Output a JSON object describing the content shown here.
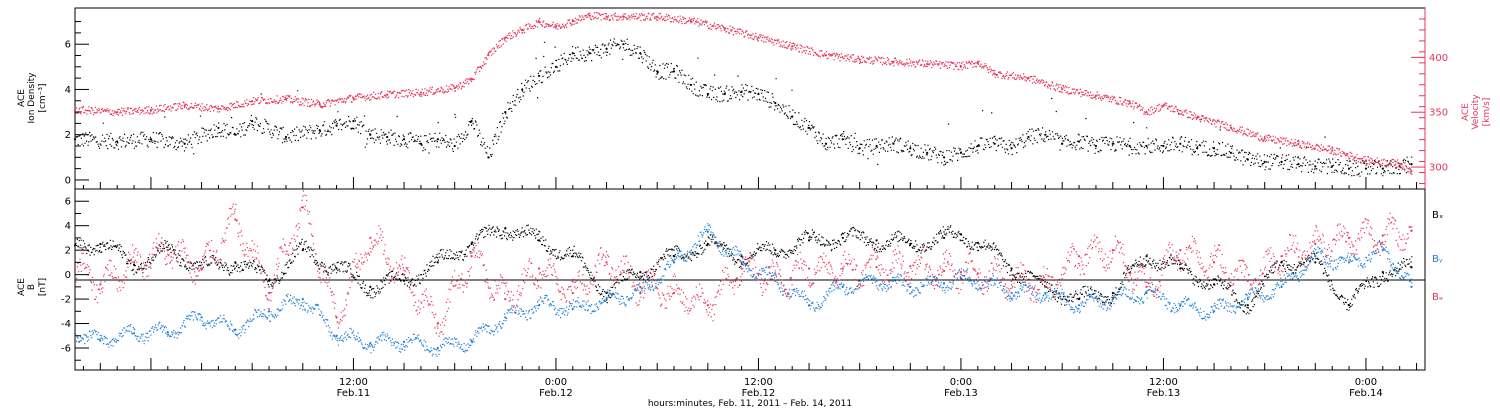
{
  "colors": {
    "density": "#000000",
    "velocity": "#e8355d",
    "bx": "#000000",
    "by": "#1e7fd4",
    "bz": "#e8355d",
    "axis": "#000000"
  },
  "xaxis": {
    "title": "hours:minutes, Feb. 11, 2011 – Feb. 14, 2011",
    "range_hours": [
      -4.5,
      75.5
    ],
    "ticks": [
      {
        "hour": 12,
        "time": "12:00",
        "date": "Feb.11"
      },
      {
        "hour": 24,
        "time": "0:00",
        "date": "Feb.12"
      },
      {
        "hour": 36,
        "time": "12:00",
        "date": "Feb.12"
      },
      {
        "hour": 48,
        "time": "0:00",
        "date": "Feb.13"
      },
      {
        "hour": 60,
        "time": "12:00",
        "date": "Feb.13"
      },
      {
        "hour": 72,
        "time": "0:00",
        "date": "Feb.14"
      }
    ]
  },
  "panels": {
    "top": {
      "left_label_line1": "ACE",
      "left_label_line2": "Ion Density",
      "left_label_line3": "[cm⁻³]",
      "right_label_line1": "ACE",
      "right_label_line2": "Velocity",
      "right_label_line3": "[km/s]"
    },
    "bottom": {
      "left_label_line1": "ACE",
      "left_label_line2": "B",
      "left_label_line3": "[nT]",
      "legend_bx": "Bₓ",
      "legend_by": "Bᵧ",
      "legend_bz": "Bₔ"
    }
  },
  "chart_data": [
    {
      "type": "scatter",
      "title": "",
      "ylabel": "ACE Ion Density [cm⁻³]",
      "ylim": [
        -0.4,
        7.6
      ],
      "yticks": [
        0,
        2,
        4,
        6
      ],
      "series": [
        {
          "name": "Ion Density",
          "x": [
            -4.5,
            -2,
            0,
            2,
            4,
            5,
            6,
            8,
            10,
            11,
            12,
            13,
            14,
            15,
            16,
            17,
            18,
            19,
            20,
            21,
            22,
            23,
            24,
            25,
            26,
            27,
            28,
            29,
            30,
            31,
            32,
            33,
            34,
            35,
            36,
            37,
            38,
            39,
            40,
            41,
            42,
            43,
            44,
            45,
            46,
            47,
            48,
            49,
            50,
            51,
            52,
            53,
            54,
            55,
            56,
            57,
            58,
            59,
            60,
            61,
            62,
            63,
            64,
            65,
            66,
            67,
            68,
            69,
            70,
            71,
            72,
            73,
            74,
            74.7
          ],
          "y": [
            1.8,
            1.7,
            1.8,
            1.6,
            2.3,
            2.0,
            2.6,
            1.9,
            2.2,
            2.4,
            2.6,
            2.0,
            1.9,
            1.8,
            1.6,
            1.8,
            1.5,
            2.6,
            1.0,
            3.0,
            4.0,
            4.6,
            5.0,
            5.6,
            5.6,
            5.8,
            6.0,
            5.6,
            4.8,
            4.8,
            4.2,
            3.8,
            3.8,
            3.9,
            3.8,
            3.4,
            2.8,
            2.3,
            1.6,
            1.8,
            1.4,
            1.5,
            1.6,
            1.4,
            1.2,
            1.0,
            1.2,
            1.5,
            1.6,
            1.4,
            1.9,
            2.0,
            1.6,
            1.7,
            1.5,
            1.6,
            1.5,
            1.5,
            1.5,
            1.6,
            1.4,
            1.4,
            1.2,
            0.9,
            0.8,
            0.8,
            0.7,
            0.6,
            0.6,
            0.5,
            0.5,
            0.5,
            0.6,
            0.7
          ]
        }
      ]
    },
    {
      "type": "line",
      "title": "",
      "ylabel": "ACE Velocity [km/s]",
      "ylim": [
        280,
        445
      ],
      "yticks": [
        300,
        350,
        400
      ],
      "series": [
        {
          "name": "Velocity",
          "x": [
            -4.5,
            -2,
            0,
            2,
            4,
            6,
            8,
            10,
            12,
            14,
            16,
            18,
            19,
            20,
            21,
            22,
            23,
            24,
            25,
            26,
            27,
            28,
            30,
            32,
            34,
            36,
            38,
            40,
            42,
            44,
            46,
            48,
            49,
            50,
            52,
            54,
            56,
            58,
            59,
            60,
            62,
            64,
            66,
            68,
            70,
            72,
            74,
            74.7
          ],
          "y": [
            352,
            350,
            352,
            356,
            353,
            360,
            362,
            357,
            363,
            366,
            368,
            372,
            380,
            402,
            418,
            425,
            432,
            428,
            433,
            438,
            437,
            437,
            437,
            433,
            426,
            418,
            410,
            402,
            398,
            396,
            394,
            392,
            395,
            385,
            381,
            371,
            365,
            358,
            350,
            356,
            345,
            336,
            326,
            321,
            315,
            306,
            303,
            296
          ]
        }
      ]
    },
    {
      "type": "scatter",
      "title": "",
      "ylabel": "ACE B [nT]",
      "ylim": [
        -7.8,
        7.0
      ],
      "yticks": [
        -6,
        -4,
        -2,
        0,
        2,
        4,
        6
      ],
      "series": [
        {
          "name": "Bₓ",
          "x": [
            -4.5,
            -3,
            -1,
            1,
            3,
            5,
            7,
            9,
            11,
            13,
            15,
            17,
            19,
            21,
            23,
            25,
            27,
            29,
            31,
            33,
            35,
            37,
            39,
            41,
            43,
            45,
            47,
            48,
            49,
            51,
            53,
            55,
            57,
            59,
            61,
            63,
            65,
            67,
            69,
            71,
            73,
            74.7
          ],
          "y": [
            2.4,
            2.5,
            0.8,
            2.0,
            0.5,
            1.0,
            -0.5,
            2.0,
            0.5,
            -1.0,
            -0.5,
            1.0,
            2.5,
            3.8,
            2.8,
            1.5,
            -1.5,
            0.2,
            1.5,
            2.5,
            1.5,
            2.0,
            2.8,
            3.0,
            2.8,
            2.5,
            3.0,
            3.3,
            2.6,
            0.5,
            -1.0,
            -2.0,
            -1.5,
            1.5,
            0.5,
            -0.8,
            -2.5,
            1.0,
            1.0,
            -2.5,
            0.2,
            0.6
          ]
        },
        {
          "name": "Bᵧ",
          "x": [
            -4.5,
            -3,
            -1,
            1,
            3,
            5,
            7,
            9,
            11,
            13,
            15,
            17,
            19,
            21,
            23,
            25,
            27,
            29,
            31,
            33,
            35,
            37,
            39,
            41,
            43,
            45,
            47,
            48,
            49,
            51,
            53,
            55,
            57,
            59,
            61,
            63,
            65,
            67,
            69,
            71,
            73,
            74.7
          ],
          "y": [
            -4.8,
            -5.4,
            -4.8,
            -4.7,
            -3.5,
            -4.5,
            -3.0,
            -2.0,
            -5.0,
            -5.6,
            -5.5,
            -6.0,
            -5.4,
            -3.5,
            -2.5,
            -2.8,
            -2.0,
            -1.5,
            1.0,
            3.5,
            1.0,
            -0.5,
            -2.5,
            -1.0,
            -0.5,
            -1.0,
            -0.7,
            -0.3,
            -0.5,
            -1.5,
            -1.5,
            -2.5,
            -2.0,
            -1.5,
            -2.5,
            -3.0,
            -2.0,
            -1.0,
            1.5,
            1.0,
            2.0,
            -1.0
          ]
        },
        {
          "name": "Bₔ",
          "x": [
            -4.5,
            -3,
            -1,
            1,
            3,
            5,
            7,
            9,
            11,
            13,
            15,
            17,
            19,
            21,
            23,
            25,
            27,
            29,
            31,
            33,
            35,
            37,
            39,
            41,
            43,
            45,
            47,
            48,
            49,
            51,
            53,
            55,
            57,
            59,
            61,
            63,
            65,
            67,
            69,
            71,
            73,
            74.7
          ],
          "y": [
            0.5,
            -0.8,
            1.0,
            2.0,
            0.5,
            4.5,
            -1.5,
            5.5,
            -3.5,
            3.0,
            0.0,
            -4.0,
            1.5,
            -2.0,
            0.5,
            -1.5,
            1.0,
            -1.0,
            -1.5,
            -2.5,
            0.5,
            -0.5,
            0.5,
            0.5,
            0.6,
            0.7,
            0.3,
            0.2,
            0.1,
            -0.5,
            -1.0,
            1.5,
            2.0,
            -1.0,
            2.0,
            1.0,
            -0.5,
            1.5,
            2.5,
            3.0,
            3.2,
            3.6
          ]
        }
      ]
    }
  ]
}
